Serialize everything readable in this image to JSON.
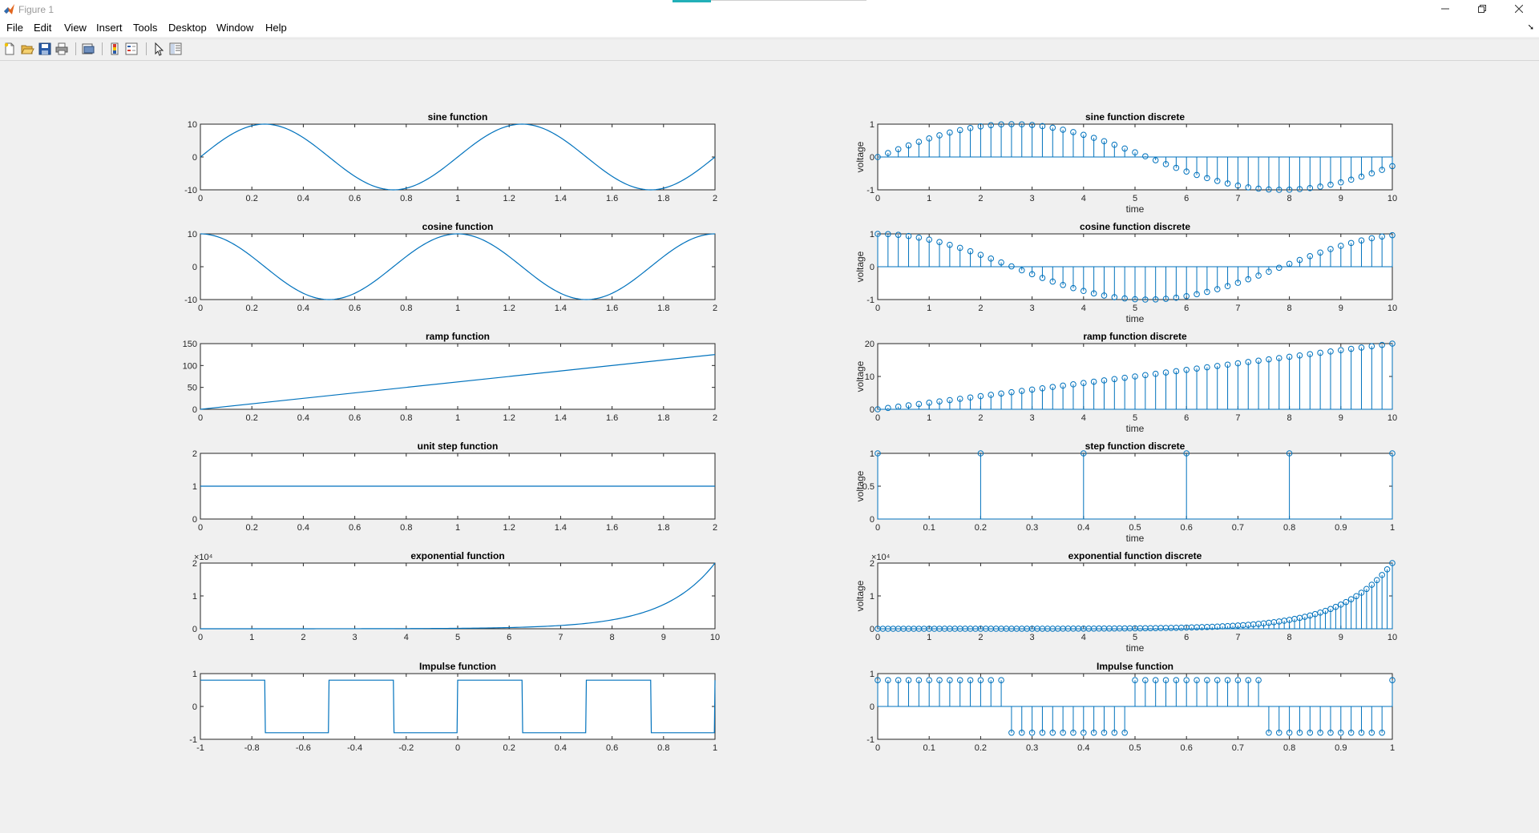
{
  "window": {
    "title": "Figure 1"
  },
  "menu": [
    "File",
    "Edit",
    "View",
    "Insert",
    "Tools",
    "Desktop",
    "Window",
    "Help"
  ],
  "colors": {
    "line": "#0072bd",
    "axis": "#262626",
    "panel": "#f0f0f0"
  },
  "toolbar_icons": [
    "new-figure-icon",
    "open-file-icon",
    "save-icon",
    "print-icon",
    "print-preview-icon",
    "colorbar-icon",
    "legend-icon",
    "pointer-icon",
    "property-inspector-icon"
  ],
  "plots": [
    {
      "title": "sine function",
      "xticks": [
        "0",
        "0.2",
        "0.4",
        "0.6",
        "0.8",
        "1",
        "1.2",
        "1.4",
        "1.6",
        "1.8",
        "2"
      ],
      "yticks": [
        "-10",
        "0",
        "10"
      ],
      "ylabel": "",
      "xlabel": "",
      "exponent": ""
    },
    {
      "title": "sine function discrete",
      "xticks": [
        "0",
        "1",
        "2",
        "3",
        "4",
        "5",
        "6",
        "7",
        "8",
        "9",
        "10"
      ],
      "yticks": [
        "-1",
        "0",
        "1"
      ],
      "ylabel": "voltage",
      "xlabel": "time",
      "exponent": ""
    },
    {
      "title": "cosine function",
      "xticks": [
        "0",
        "0.2",
        "0.4",
        "0.6",
        "0.8",
        "1",
        "1.2",
        "1.4",
        "1.6",
        "1.8",
        "2"
      ],
      "yticks": [
        "-10",
        "0",
        "10"
      ],
      "ylabel": "",
      "xlabel": "",
      "exponent": ""
    },
    {
      "title": "cosine function discrete",
      "xticks": [
        "0",
        "1",
        "2",
        "3",
        "4",
        "5",
        "6",
        "7",
        "8",
        "9",
        "10"
      ],
      "yticks": [
        "-1",
        "0",
        "1"
      ],
      "ylabel": "voltage",
      "xlabel": "time",
      "exponent": ""
    },
    {
      "title": "ramp function",
      "xticks": [
        "0",
        "0.2",
        "0.4",
        "0.6",
        "0.8",
        "1",
        "1.2",
        "1.4",
        "1.6",
        "1.8",
        "2"
      ],
      "yticks": [
        "0",
        "50",
        "100",
        "150"
      ],
      "ylabel": "",
      "xlabel": "",
      "exponent": ""
    },
    {
      "title": "ramp function discrete",
      "xticks": [
        "0",
        "1",
        "2",
        "3",
        "4",
        "5",
        "6",
        "7",
        "8",
        "9",
        "10"
      ],
      "yticks": [
        "0",
        "10",
        "20"
      ],
      "ylabel": "voltage",
      "xlabel": "time",
      "exponent": ""
    },
    {
      "title": "unit step function",
      "xticks": [
        "0",
        "0.2",
        "0.4",
        "0.6",
        "0.8",
        "1",
        "1.2",
        "1.4",
        "1.6",
        "1.8",
        "2"
      ],
      "yticks": [
        "0",
        "1",
        "2"
      ],
      "ylabel": "",
      "xlabel": "",
      "exponent": ""
    },
    {
      "title": "step function discrete",
      "xticks": [
        "0",
        "0.1",
        "0.2",
        "0.3",
        "0.4",
        "0.5",
        "0.6",
        "0.7",
        "0.8",
        "0.9",
        "1"
      ],
      "yticks": [
        "0",
        "0.5",
        "1"
      ],
      "ylabel": "voltage",
      "xlabel": "time",
      "exponent": ""
    },
    {
      "title": "exponential function",
      "xticks": [
        "0",
        "1",
        "2",
        "3",
        "4",
        "5",
        "6",
        "7",
        "8",
        "9",
        "10"
      ],
      "yticks": [
        "0",
        "1",
        "2"
      ],
      "ylabel": "",
      "xlabel": "",
      "exponent": "×10⁴"
    },
    {
      "title": "exponential function discrete",
      "xticks": [
        "0",
        "1",
        "2",
        "3",
        "4",
        "5",
        "6",
        "7",
        "8",
        "9",
        "10"
      ],
      "yticks": [
        "0",
        "1",
        "2"
      ],
      "ylabel": "voltage",
      "xlabel": "time",
      "exponent": "×10⁴"
    },
    {
      "title": "Impulse function",
      "xticks": [
        "-1",
        "-0.8",
        "-0.6",
        "-0.4",
        "-0.2",
        "0",
        "0.2",
        "0.4",
        "0.6",
        "0.8",
        "1"
      ],
      "yticks": [
        "-1",
        "0",
        "1"
      ],
      "ylabel": "",
      "xlabel": "",
      "exponent": ""
    },
    {
      "title": "Impulse function",
      "xticks": [
        "0",
        "0.1",
        "0.2",
        "0.3",
        "0.4",
        "0.5",
        "0.6",
        "0.7",
        "0.8",
        "0.9",
        "1"
      ],
      "yticks": [
        "-1",
        "0",
        "1"
      ],
      "ylabel": "",
      "xlabel": "",
      "exponent": ""
    }
  ],
  "chart_data": [
    {
      "type": "line",
      "title": "sine function",
      "x_range": [
        0,
        2
      ],
      "ylim": [
        -10,
        10
      ],
      "function": "10*sin(2*pi*t)",
      "samples": 201
    },
    {
      "type": "stem",
      "title": "sine function discrete",
      "xlabel": "time",
      "ylabel": "voltage",
      "x_range": [
        0,
        10
      ],
      "ylim": [
        -1,
        1
      ],
      "function": "sin(0.6*n)",
      "step": 0.2
    },
    {
      "type": "line",
      "title": "cosine function",
      "x_range": [
        0,
        2
      ],
      "ylim": [
        -10,
        10
      ],
      "function": "10*cos(2*pi*t)",
      "samples": 201
    },
    {
      "type": "stem",
      "title": "cosine function discrete",
      "xlabel": "time",
      "ylabel": "voltage",
      "x_range": [
        0,
        10
      ],
      "ylim": [
        -1,
        1
      ],
      "function": "cos(0.6*n)",
      "step": 0.2
    },
    {
      "type": "line",
      "title": "ramp function",
      "x_range": [
        0,
        2
      ],
      "ylim": [
        0,
        150
      ],
      "function": "62.5*t",
      "samples": 2
    },
    {
      "type": "stem",
      "title": "ramp function discrete",
      "xlabel": "time",
      "ylabel": "voltage",
      "x_range": [
        0,
        10
      ],
      "ylim": [
        0,
        20
      ],
      "function": "2*n",
      "step": 0.2
    },
    {
      "type": "line",
      "title": "unit step function",
      "x_range": [
        0,
        2
      ],
      "ylim": [
        0,
        2
      ],
      "function": "1",
      "samples": 2
    },
    {
      "type": "stem",
      "title": "step function discrete",
      "xlabel": "time",
      "ylabel": "voltage",
      "x": [
        0,
        0.2,
        0.4,
        0.6,
        0.8,
        1.0
      ],
      "values": [
        1,
        1,
        1,
        1,
        1,
        1
      ],
      "ylim": [
        0,
        1
      ]
    },
    {
      "type": "line",
      "title": "exponential function",
      "x_range": [
        0,
        10
      ],
      "ylim": [
        0,
        22026
      ],
      "function": "exp(t)",
      "samples": 201
    },
    {
      "type": "stem",
      "title": "exponential function discrete",
      "xlabel": "time",
      "ylabel": "voltage",
      "x_range": [
        0,
        10
      ],
      "ylim": [
        0,
        22026
      ],
      "function": "exp(n)",
      "step": 0.1
    },
    {
      "type": "line",
      "title": "Impulse function",
      "x_range": [
        -1,
        1
      ],
      "ylim": [
        -1,
        1
      ],
      "function": "0.8*sign(sin(4*pi*t))",
      "samples": 801
    },
    {
      "type": "stem",
      "title": "Impulse function",
      "x_range": [
        0,
        1
      ],
      "ylim": [
        -1,
        1
      ],
      "function": "0.8*sign(sin(4*pi*t))",
      "step": 0.02
    }
  ]
}
